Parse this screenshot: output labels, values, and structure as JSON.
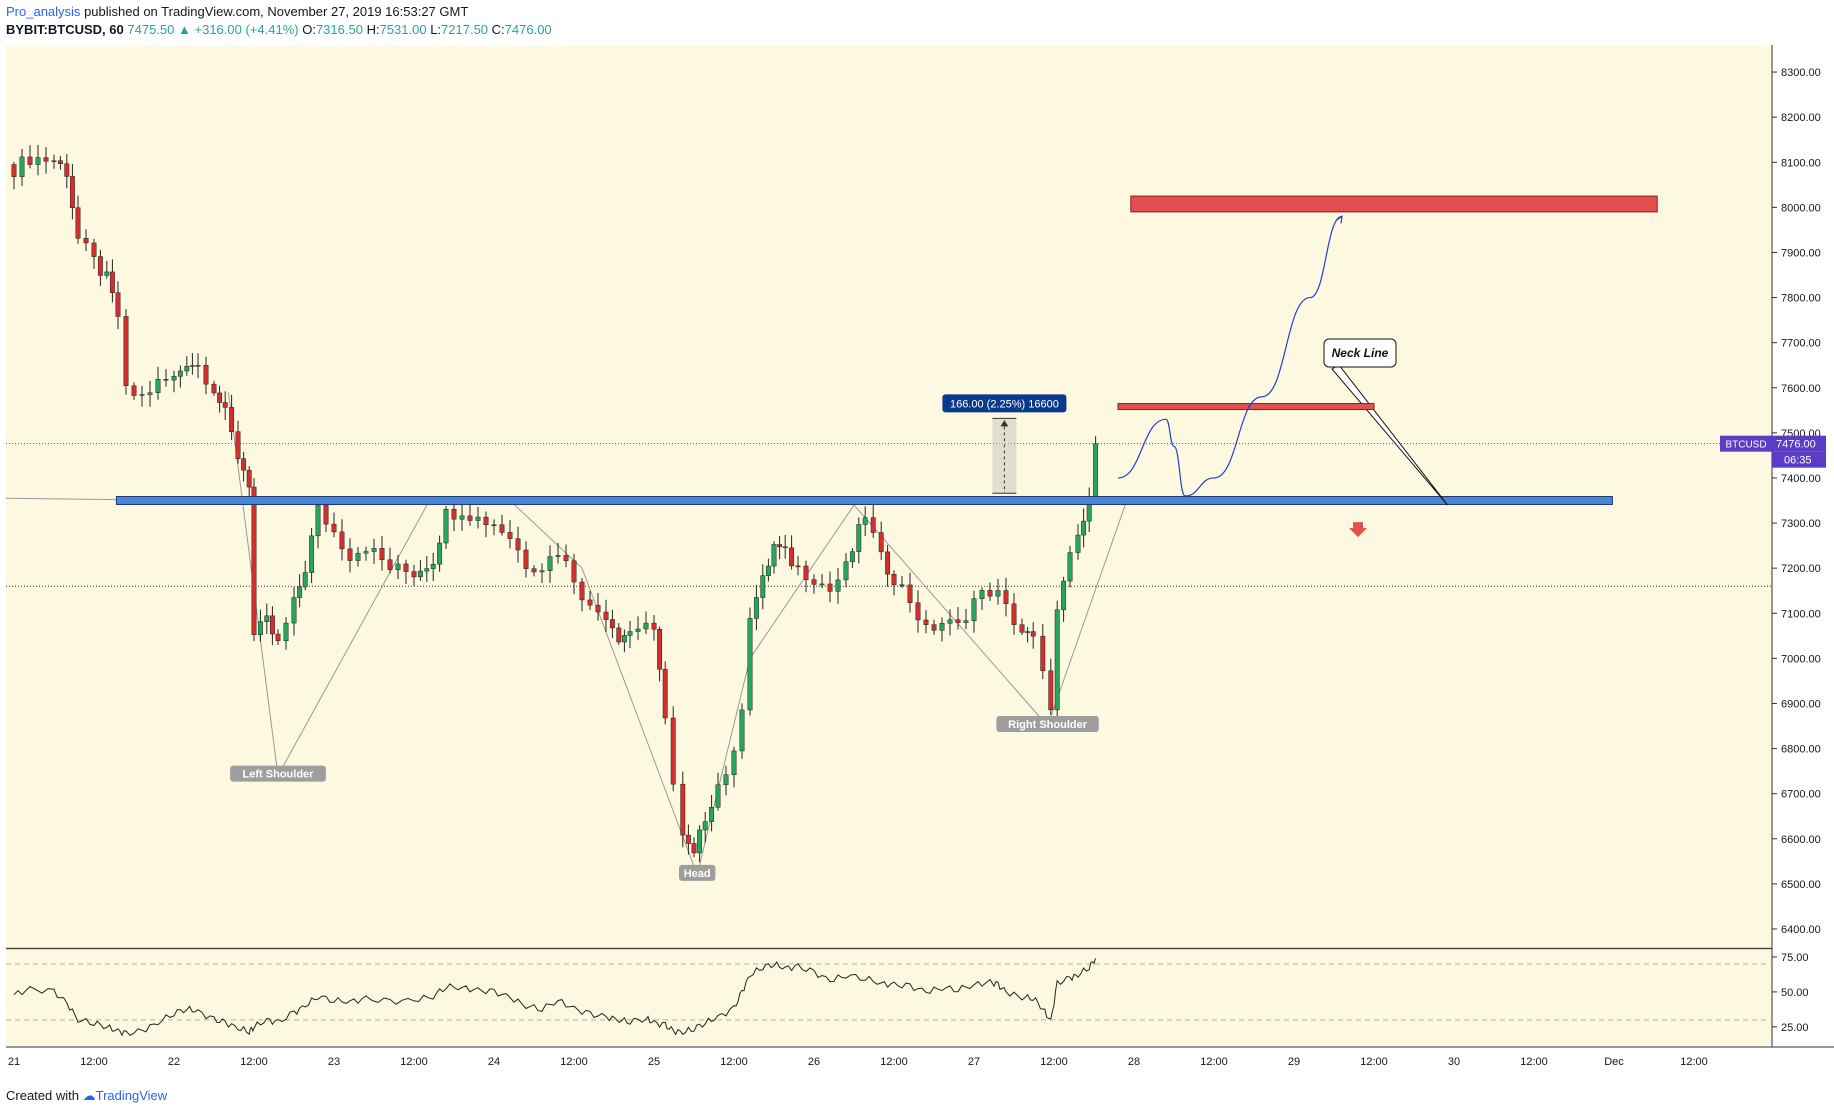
{
  "header": {
    "author": "Pro_analysis",
    "published": "published on TradingView.com, November 27, 2019 16:53:27 GMT",
    "symbol": "BYBIT:BTCUSD, 60",
    "last": "7475.50",
    "change": "+316.00 (+4.41%)",
    "o_label": "O:",
    "o_value": "7316.50",
    "h_label": "H:",
    "h_value": "7531.00",
    "l_label": "L:",
    "l_value": "7217.50",
    "c_label": "C:",
    "c_value": "7476.00"
  },
  "footer": {
    "created": "Created with",
    "brand": "TradingView"
  },
  "colors": {
    "background": "#fdf9e1",
    "up": "#26a65b",
    "down": "#d32f2f",
    "neckline": "#4a86d4",
    "zone": "#e25050",
    "projection": "#1f3fd6",
    "badge": "#5b3cc4",
    "measure": "#0b3a8a",
    "pattern": "#999999"
  },
  "chart_data": [
    {
      "type": "candlestick",
      "title": "",
      "symbol": "BTCUSD",
      "interval": "60",
      "x_tick_labels": [
        "21",
        "12:00",
        "22",
        "12:00",
        "23",
        "12:00",
        "24",
        "12:00",
        "25",
        "12:00",
        "26",
        "12:00",
        "27",
        "12:00",
        "28",
        "12:00",
        "29",
        "12:00",
        "30",
        "12:00",
        "Dec",
        "12:00"
      ],
      "y_ticks": [
        6400,
        6500,
        6600,
        6700,
        6800,
        6900,
        7000,
        7100,
        7200,
        7300,
        7400,
        7500,
        7600,
        7700,
        7800,
        7900,
        8000,
        8100,
        8200,
        8300
      ],
      "y_tick_labels": [
        "6400.00",
        "6500.00",
        "6600.00",
        "6700.00",
        "6800.00",
        "6900.00",
        "7000.00",
        "7100.00",
        "7200.00",
        "7300.00",
        "7400.00",
        "7500.00",
        "7600.00",
        "7700.00",
        "7800.00",
        "7900.00",
        "8000.00",
        "8100.00",
        "8200.00",
        "8300.00"
      ],
      "ylim": [
        6360,
        8360
      ],
      "xlim": [
        0,
        10.9
      ],
      "close_path": [
        [
          0,
          8085
        ],
        [
          0.1,
          8110
        ],
        [
          0.25,
          8105
        ],
        [
          0.33,
          8080
        ],
        [
          0.4,
          7930
        ],
        [
          0.5,
          7880
        ],
        [
          0.58,
          7840
        ],
        [
          0.65,
          7760
        ],
        [
          0.7,
          7590
        ],
        [
          0.8,
          7580
        ],
        [
          0.9,
          7610
        ],
        [
          1.0,
          7620
        ],
        [
          1.08,
          7660
        ],
        [
          1.15,
          7650
        ],
        [
          1.25,
          7600
        ],
        [
          1.32,
          7540
        ],
        [
          1.4,
          7450
        ],
        [
          1.47,
          7390
        ],
        [
          1.5,
          7050
        ],
        [
          1.58,
          7080
        ],
        [
          1.65,
          7030
        ],
        [
          1.75,
          7120
        ],
        [
          1.82,
          7200
        ],
        [
          1.9,
          7330
        ],
        [
          2.0,
          7280
        ],
        [
          2.1,
          7230
        ],
        [
          2.2,
          7250
        ],
        [
          2.35,
          7200
        ],
        [
          2.5,
          7190
        ],
        [
          2.62,
          7220
        ],
        [
          2.7,
          7320
        ],
        [
          2.8,
          7330
        ],
        [
          2.9,
          7310
        ],
        [
          3.0,
          7300
        ],
        [
          3.1,
          7270
        ],
        [
          3.2,
          7210
        ],
        [
          3.3,
          7205
        ],
        [
          3.4,
          7240
        ],
        [
          3.5,
          7180
        ],
        [
          3.6,
          7110
        ],
        [
          3.7,
          7100
        ],
        [
          3.78,
          7050
        ],
        [
          3.85,
          7060
        ],
        [
          3.95,
          7080
        ],
        [
          4.0,
          7050
        ],
        [
          4.07,
          6880
        ],
        [
          4.12,
          6720
        ],
        [
          4.18,
          6600
        ],
        [
          4.25,
          6560
        ],
        [
          4.32,
          6650
        ],
        [
          4.4,
          6720
        ],
        [
          4.5,
          6780
        ],
        [
          4.55,
          6900
        ],
        [
          4.6,
          7100
        ],
        [
          4.68,
          7170
        ],
        [
          4.75,
          7250
        ],
        [
          4.82,
          7230
        ],
        [
          4.9,
          7200
        ],
        [
          5.0,
          7180
        ],
        [
          5.1,
          7150
        ],
        [
          5.2,
          7200
        ],
        [
          5.32,
          7320
        ],
        [
          5.42,
          7220
        ],
        [
          5.5,
          7180
        ],
        [
          5.6,
          7130
        ],
        [
          5.7,
          7060
        ],
        [
          5.8,
          7080
        ],
        [
          5.9,
          7070
        ],
        [
          6.0,
          7130
        ],
        [
          6.1,
          7150
        ],
        [
          6.15,
          7140
        ],
        [
          6.2,
          7110
        ],
        [
          6.3,
          7060
        ],
        [
          6.37,
          7040
        ],
        [
          6.43,
          6960
        ],
        [
          6.48,
          6900
        ],
        [
          6.52,
          7100
        ],
        [
          6.6,
          7220
        ],
        [
          6.65,
          7270
        ],
        [
          6.72,
          7340
        ],
        [
          6.76,
          7476
        ]
      ],
      "series": [
        {
          "name": "",
          "type": "rsi",
          "ylim": [
            12,
            80
          ],
          "y_ticks": [
            25,
            50,
            75
          ],
          "y_tick_labels": [
            "25.00",
            "50.00",
            "75.00"
          ],
          "overbought": 70,
          "oversold": 30,
          "values": [
            [
              0,
              48
            ],
            [
              0.1,
              52
            ],
            [
              0.25,
              50
            ],
            [
              0.33,
              42
            ],
            [
              0.4,
              30
            ],
            [
              0.5,
              28
            ],
            [
              0.58,
              25
            ],
            [
              0.65,
              22
            ],
            [
              0.7,
              20
            ],
            [
              0.8,
              22
            ],
            [
              0.9,
              28
            ],
            [
              1.0,
              35
            ],
            [
              1.08,
              38
            ],
            [
              1.15,
              36
            ],
            [
              1.25,
              30
            ],
            [
              1.32,
              28
            ],
            [
              1.4,
              24
            ],
            [
              1.47,
              22
            ],
            [
              1.5,
              25
            ],
            [
              1.58,
              30
            ],
            [
              1.65,
              28
            ],
            [
              1.75,
              35
            ],
            [
              1.82,
              40
            ],
            [
              1.9,
              47
            ],
            [
              2.0,
              44
            ],
            [
              2.1,
              43
            ],
            [
              2.2,
              45
            ],
            [
              2.35,
              43
            ],
            [
              2.5,
              44
            ],
            [
              2.62,
              47
            ],
            [
              2.7,
              54
            ],
            [
              2.8,
              53
            ],
            [
              2.9,
              51
            ],
            [
              3.0,
              50
            ],
            [
              3.1,
              46
            ],
            [
              3.2,
              40
            ],
            [
              3.3,
              38
            ],
            [
              3.4,
              44
            ],
            [
              3.5,
              38
            ],
            [
              3.6,
              34
            ],
            [
              3.7,
              32
            ],
            [
              3.78,
              30
            ],
            [
              3.85,
              29
            ],
            [
              3.95,
              31
            ],
            [
              4.0,
              28
            ],
            [
              4.07,
              26
            ],
            [
              4.12,
              22
            ],
            [
              4.18,
              21
            ],
            [
              4.25,
              24
            ],
            [
              4.32,
              28
            ],
            [
              4.4,
              32
            ],
            [
              4.5,
              38
            ],
            [
              4.55,
              50
            ],
            [
              4.6,
              62
            ],
            [
              4.68,
              68
            ],
            [
              4.75,
              70
            ],
            [
              4.82,
              67
            ],
            [
              4.9,
              68
            ],
            [
              5.0,
              64
            ],
            [
              5.1,
              58
            ],
            [
              5.2,
              62
            ],
            [
              5.32,
              60
            ],
            [
              5.42,
              56
            ],
            [
              5.5,
              55
            ],
            [
              5.6,
              54
            ],
            [
              5.7,
              50
            ],
            [
              5.8,
              53
            ],
            [
              5.9,
              52
            ],
            [
              6.0,
              55
            ],
            [
              6.1,
              57
            ],
            [
              6.15,
              55
            ],
            [
              6.2,
              50
            ],
            [
              6.3,
              46
            ],
            [
              6.37,
              46
            ],
            [
              6.43,
              38
            ],
            [
              6.48,
              29
            ],
            [
              6.52,
              56
            ],
            [
              6.6,
              60
            ],
            [
              6.65,
              62
            ],
            [
              6.72,
              68
            ],
            [
              6.76,
              74
            ]
          ]
        }
      ],
      "annotations": {
        "last_price_badge": "BTCUSD",
        "last_price_value": "7476.00",
        "last_price_line": 7476,
        "countdown": "06:35",
        "dotted_level": 7160,
        "neckline": {
          "label": "Neck Line",
          "x": [
            0.64,
            9.99
          ],
          "price": 7350
        },
        "zones": [
          {
            "name": "target",
            "x": [
              6.98,
              10.27
            ],
            "y": [
              7990,
              8025
            ]
          },
          {
            "name": "resistance",
            "x": [
              6.9,
              8.5
            ],
            "y": [
              7555,
              7565
            ]
          }
        ],
        "measure": {
          "label": "166.00 (2.25%) 16600",
          "x": 6.19,
          "y": [
            7366,
            7532
          ]
        },
        "pattern_labels": [
          {
            "text": "Left Shoulder",
            "x": 1.65,
            "price": 6740
          },
          {
            "text": "Head",
            "x": 4.27,
            "price": 6520
          },
          {
            "text": "Right Shoulder",
            "x": 6.46,
            "price": 6850
          }
        ],
        "projection_path": [
          [
            6.9,
            7400
          ],
          [
            7.2,
            7530
          ],
          [
            7.25,
            7470
          ],
          [
            7.32,
            7360
          ],
          [
            7.5,
            7400
          ],
          [
            7.8,
            7580
          ],
          [
            8.1,
            7800
          ],
          [
            8.3,
            7980
          ]
        ],
        "down_marker": {
          "x": 8.4,
          "price": 7280
        }
      }
    }
  ]
}
